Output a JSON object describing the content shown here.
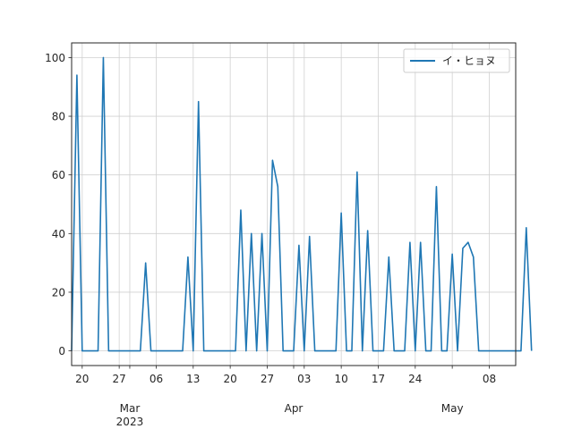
{
  "chart_data": {
    "type": "line",
    "x_start_date": "2023-02-19",
    "x_end_date": "2023-05-13",
    "xlim_dates": [
      "2023-02-18",
      "2023-05-13"
    ],
    "ylim": [
      -5,
      105
    ],
    "y_ticks": [
      0,
      20,
      40,
      60,
      80,
      100
    ],
    "x_ticks": [
      {
        "date": "2023-02-20",
        "label": "20",
        "sub": ""
      },
      {
        "date": "2023-02-27",
        "label": "27",
        "sub": ""
      },
      {
        "date": "2023-03-01",
        "label": "Mar",
        "sub": "2023"
      },
      {
        "date": "2023-03-06",
        "label": "06",
        "sub": ""
      },
      {
        "date": "2023-03-13",
        "label": "13",
        "sub": ""
      },
      {
        "date": "2023-03-20",
        "label": "20",
        "sub": ""
      },
      {
        "date": "2023-03-27",
        "label": "27",
        "sub": ""
      },
      {
        "date": "2023-04-01",
        "label": "Apr",
        "sub": ""
      },
      {
        "date": "2023-04-03",
        "label": "03",
        "sub": ""
      },
      {
        "date": "2023-04-10",
        "label": "10",
        "sub": ""
      },
      {
        "date": "2023-04-17",
        "label": "17",
        "sub": ""
      },
      {
        "date": "2023-04-24",
        "label": "24",
        "sub": ""
      },
      {
        "date": "2023-05-01",
        "label": "May",
        "sub": ""
      },
      {
        "date": "2023-05-08",
        "label": "08",
        "sub": ""
      }
    ],
    "grid": true,
    "legend_position": "top-right",
    "series": [
      {
        "name": "イ・ヒョヌ",
        "color": "#1f77b4",
        "values": [
          94,
          0,
          0,
          0,
          0,
          100,
          0,
          0,
          0,
          0,
          0,
          0,
          0,
          30,
          0,
          0,
          0,
          0,
          0,
          0,
          0,
          32,
          0,
          85,
          0,
          0,
          0,
          0,
          0,
          0,
          0,
          48,
          0,
          40,
          0,
          40,
          0,
          65,
          56,
          0,
          0,
          0,
          36,
          0,
          39,
          0,
          0,
          0,
          0,
          0,
          47,
          0,
          0,
          61,
          0,
          41,
          0,
          0,
          0,
          32,
          0,
          0,
          0,
          37,
          0,
          37,
          0,
          0,
          56,
          0,
          0,
          33,
          0,
          35,
          37,
          32,
          0,
          0,
          0,
          0,
          0,
          0,
          0,
          0,
          0,
          42,
          0
        ]
      }
    ]
  }
}
